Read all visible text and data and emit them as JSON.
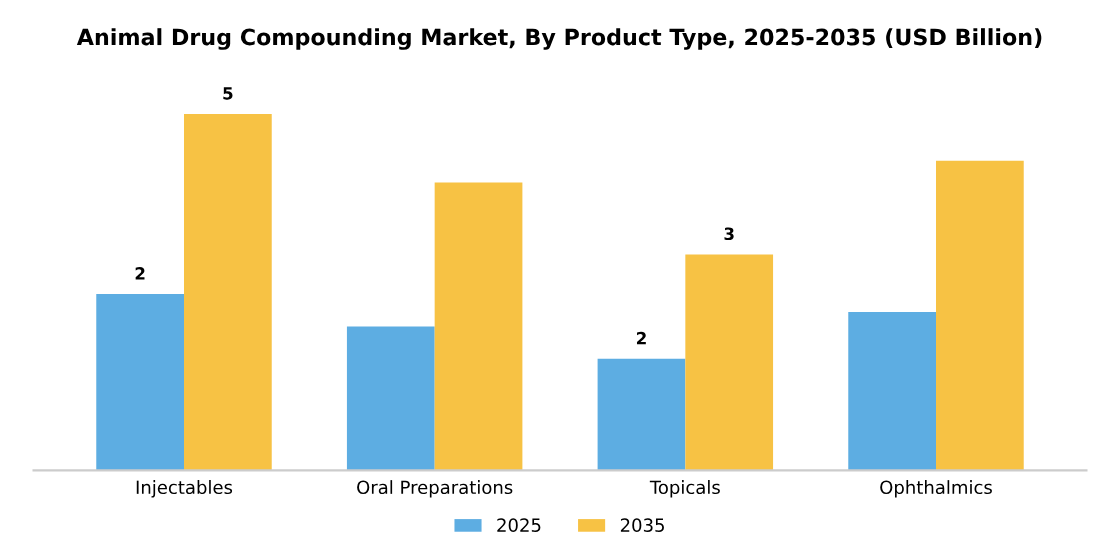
{
  "chart_data": {
    "type": "bar",
    "title": "Animal Drug Compounding Market, By Product Type, 2025-2035 (USD Billion)",
    "categories": [
      "Injectables",
      "Oral Preparations",
      "Topicals",
      "Ophthalmics"
    ],
    "tick_labels": "x",
    "series": [
      {
        "name": "2025",
        "color": "#5dade2",
        "values": [
          2.45,
          2.0,
          1.55,
          2.2
        ],
        "value_labels": [
          "2",
          null,
          "2",
          null
        ]
      },
      {
        "name": "2035",
        "color": "#f7c244",
        "values": [
          4.95,
          4.0,
          3.0,
          4.3
        ],
        "value_labels": [
          "5",
          null,
          "3",
          null
        ]
      }
    ],
    "legend": "bottom",
    "grid": false
  }
}
